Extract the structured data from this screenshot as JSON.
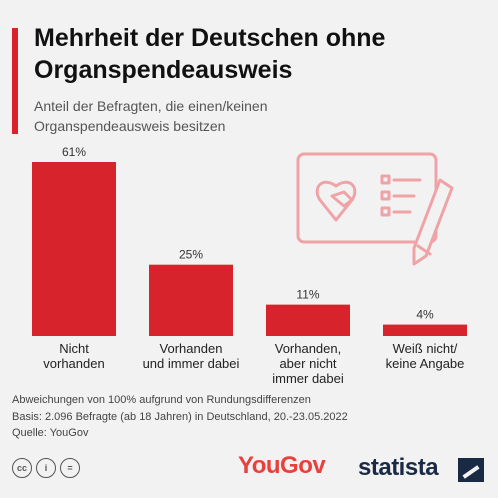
{
  "chart_data": {
    "type": "bar",
    "title": "Mehrheit der Deutschen ohne Organspendeausweis",
    "subtitle": "Anteil der Befragten, die einen/keinen Organspendeausweis besitzen",
    "categories": [
      [
        "Nicht",
        "vorhanden"
      ],
      [
        "Vorhanden",
        "und immer dabei"
      ],
      [
        "Vorhanden,",
        "aber nicht",
        "immer dabei"
      ],
      [
        "Weiß nicht/",
        "keine Angabe"
      ]
    ],
    "values": [
      61,
      25,
      11,
      4
    ],
    "value_labels": [
      "61%",
      "25%",
      "11%",
      "4%"
    ],
    "unit": "%",
    "ylim": [
      0,
      61
    ],
    "grid": false,
    "legend": "none",
    "bar_color": "#d7232b"
  },
  "footnotes": [
    "Abweichungen von 100% aufgrund von Rundungsdifferenzen",
    "Basis: 2.096 Befragte (ab 18 Jahren) in Deutschland, 20.-23.05.2022",
    "Quelle: YouGov"
  ],
  "license_icons": [
    "cc",
    "i",
    "="
  ],
  "illustration_icon": "organ-donor-card-icon",
  "brands": {
    "source_logo": "YouGov",
    "publisher_logo": "statista"
  },
  "colors": {
    "accent": "#d7232b",
    "illustration": "#f0a3a7",
    "yougov": "#e8403b",
    "statista": "#1a2a44"
  }
}
